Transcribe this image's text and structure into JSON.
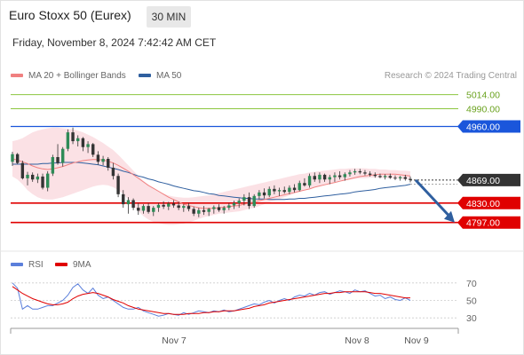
{
  "header": {
    "title": "Euro Stoxx 50 (Eurex)",
    "timeframe": "30 MIN",
    "datetime": "Friday, November 8, 2024 7:42:42 AM CET"
  },
  "legend": {
    "ma20_label": "MA 20 + Bollinger Bands",
    "ma20_color": "#f08080",
    "ma50_label": "MA 50",
    "ma50_color": "#2f5f9f",
    "copyright": "Research © 2024 Trading Central"
  },
  "rsi_legend": {
    "rsi_label": "RSI",
    "rsi_color": "#5b7fdb",
    "ma9_label": "9MA",
    "ma9_color": "#e00000"
  },
  "chart_data": [
    {
      "type": "candlestick",
      "ylim": [
        4780,
        5030
      ],
      "x_ticks": [
        "Nov 7",
        "Nov 8",
        "Nov 9"
      ],
      "levels": [
        {
          "label": "5014.00",
          "value": 5014,
          "color": "#8cc63f",
          "style": "thin"
        },
        {
          "label": "4990.00",
          "value": 4990,
          "color": "#8cc63f",
          "style": "thin"
        },
        {
          "label": "4960.00",
          "value": 4960,
          "color": "#1a56db",
          "style": "resistance"
        },
        {
          "label": "4869.00",
          "value": 4869,
          "color": "#333333",
          "style": "last"
        },
        {
          "label": "4830.00",
          "value": 4830,
          "color": "#e00000",
          "style": "support"
        },
        {
          "label": "4797.00",
          "value": 4797,
          "color": "#e00000",
          "style": "support"
        }
      ],
      "candles": [
        [
          4900,
          4917,
          4893,
          4913
        ],
        [
          4913,
          4915,
          4896,
          4898
        ],
        [
          4898,
          4902,
          4870,
          4872
        ],
        [
          4872,
          4883,
          4860,
          4878
        ],
        [
          4878,
          4882,
          4866,
          4870
        ],
        [
          4870,
          4880,
          4864,
          4875
        ],
        [
          4875,
          4880,
          4853,
          4856
        ],
        [
          4856,
          4884,
          4850,
          4880
        ],
        [
          4880,
          4912,
          4876,
          4908
        ],
        [
          4908,
          4930,
          4895,
          4898
        ],
        [
          4898,
          4925,
          4892,
          4922
        ],
        [
          4922,
          4955,
          4918,
          4950
        ],
        [
          4950,
          4958,
          4930,
          4935
        ],
        [
          4935,
          4945,
          4926,
          4940
        ],
        [
          4940,
          4942,
          4918,
          4925
        ],
        [
          4925,
          4935,
          4915,
          4930
        ],
        [
          4930,
          4932,
          4908,
          4912
        ],
        [
          4912,
          4918,
          4895,
          4900
        ],
        [
          4900,
          4910,
          4894,
          4905
        ],
        [
          4905,
          4908,
          4885,
          4890
        ],
        [
          4890,
          4898,
          4870,
          4876
        ],
        [
          4876,
          4880,
          4840,
          4845
        ],
        [
          4845,
          4852,
          4822,
          4828
        ],
        [
          4828,
          4840,
          4812,
          4835
        ],
        [
          4835,
          4838,
          4818,
          4822
        ],
        [
          4822,
          4830,
          4810,
          4817
        ],
        [
          4817,
          4828,
          4812,
          4825
        ],
        [
          4825,
          4830,
          4812,
          4815
        ],
        [
          4815,
          4825,
          4808,
          4822
        ],
        [
          4822,
          4830,
          4815,
          4827
        ],
        [
          4827,
          4833,
          4820,
          4824
        ],
        [
          4824,
          4832,
          4818,
          4829
        ],
        [
          4829,
          4835,
          4822,
          4826
        ],
        [
          4826,
          4832,
          4818,
          4822
        ],
        [
          4822,
          4828,
          4815,
          4825
        ],
        [
          4825,
          4830,
          4816,
          4820
        ],
        [
          4820,
          4824,
          4808,
          4812
        ],
        [
          4812,
          4822,
          4806,
          4818
        ],
        [
          4818,
          4825,
          4810,
          4815
        ],
        [
          4815,
          4822,
          4808,
          4820
        ],
        [
          4820,
          4826,
          4812,
          4823
        ],
        [
          4823,
          4828,
          4815,
          4818
        ],
        [
          4818,
          4825,
          4812,
          4822
        ],
        [
          4822,
          4830,
          4818,
          4826
        ],
        [
          4826,
          4834,
          4820,
          4830
        ],
        [
          4830,
          4838,
          4822,
          4834
        ],
        [
          4834,
          4845,
          4826,
          4840
        ],
        [
          4840,
          4848,
          4820,
          4825
        ],
        [
          4825,
          4845,
          4822,
          4842
        ],
        [
          4842,
          4852,
          4836,
          4848
        ],
        [
          4848,
          4855,
          4838,
          4843
        ],
        [
          4843,
          4858,
          4840,
          4854
        ],
        [
          4854,
          4860,
          4845,
          4850
        ],
        [
          4850,
          4856,
          4842,
          4852
        ],
        [
          4852,
          4858,
          4846,
          4849
        ],
        [
          4849,
          4860,
          4845,
          4856
        ],
        [
          4856,
          4862,
          4848,
          4852
        ],
        [
          4852,
          4868,
          4850,
          4864
        ],
        [
          4864,
          4872,
          4858,
          4860
        ],
        [
          4860,
          4880,
          4856,
          4876
        ],
        [
          4876,
          4882,
          4866,
          4870
        ],
        [
          4870,
          4882,
          4864,
          4878
        ],
        [
          4878,
          4880,
          4866,
          4870
        ],
        [
          4870,
          4878,
          4862,
          4874
        ],
        [
          4874,
          4882,
          4866,
          4877
        ],
        [
          4877,
          4884,
          4870,
          4874
        ],
        [
          4874,
          4882,
          4868,
          4879
        ],
        [
          4879,
          4886,
          4875,
          4882
        ],
        [
          4882,
          4888,
          4878,
          4884
        ],
        [
          4884,
          4888,
          4879,
          4882
        ],
        [
          4882,
          4886,
          4877,
          4880
        ],
        [
          4880,
          4884,
          4875,
          4878
        ],
        [
          4878,
          4882,
          4873,
          4876
        ],
        [
          4876,
          4880,
          4872,
          4874
        ],
        [
          4874,
          4879,
          4870,
          4876
        ],
        [
          4876,
          4880,
          4871,
          4873
        ],
        [
          4873,
          4877,
          4869,
          4872
        ],
        [
          4872,
          4876,
          4868,
          4874
        ],
        [
          4874,
          4878,
          4868,
          4871
        ],
        [
          4871,
          4875,
          4865,
          4869
        ]
      ],
      "ma20": [
        4905,
        4903,
        4900,
        4897,
        4893,
        4890,
        4888,
        4887,
        4888,
        4890,
        4892,
        4895,
        4898,
        4900,
        4902,
        4903,
        4904,
        4904,
        4903,
        4901,
        4898,
        4894,
        4889,
        4884,
        4878,
        4872,
        4866,
        4860,
        4855,
        4850,
        4845,
        4840,
        4836,
        4832,
        4828,
        4826,
        4824,
        4822,
        4821,
        4821,
        4821,
        4822,
        4823,
        4824,
        4825,
        4826,
        4828,
        4830,
        4832,
        4834,
        4836,
        4838,
        4840,
        4842,
        4844,
        4846,
        4848,
        4850,
        4852,
        4854,
        4857,
        4859,
        4861,
        4863,
        4865,
        4867,
        4869,
        4871,
        4873,
        4875,
        4876,
        4877,
        4878,
        4879,
        4879,
        4879,
        4879,
        4878,
        4877,
        4876
      ],
      "bb_upper": [
        4935,
        4937,
        4940,
        4945,
        4950,
        4953,
        4955,
        4957,
        4958,
        4958,
        4957,
        4956,
        4955,
        4953,
        4950,
        4946,
        4942,
        4937,
        4932,
        4926,
        4920,
        4912,
        4903,
        4894,
        4885,
        4876,
        4868,
        4861,
        4855,
        4850,
        4846,
        4843,
        4841,
        4840,
        4839,
        4839,
        4840,
        4841,
        4842,
        4843,
        4845,
        4847,
        4849,
        4851,
        4853,
        4855,
        4857,
        4859,
        4861,
        4863,
        4865,
        4867,
        4869,
        4871,
        4873,
        4875,
        4877,
        4879,
        4880,
        4882,
        4883,
        4884,
        4885,
        4886,
        4887,
        4888,
        4888,
        4889,
        4889,
        4889,
        4889,
        4888,
        4888,
        4887,
        4887,
        4886,
        4886,
        4885,
        4885,
        4884
      ],
      "bb_lower": [
        4875,
        4870,
        4862,
        4852,
        4845,
        4840,
        4837,
        4836,
        4836,
        4838,
        4840,
        4843,
        4846,
        4849,
        4852,
        4855,
        4858,
        4860,
        4861,
        4860,
        4857,
        4852,
        4845,
        4836,
        4826,
        4816,
        4808,
        4802,
        4798,
        4796,
        4794,
        4793,
        4793,
        4794,
        4795,
        4797,
        4800,
        4803,
        4806,
        4808,
        4810,
        4812,
        4813,
        4814,
        4815,
        4816,
        4818,
        4820,
        4822,
        4825,
        4828,
        4831,
        4834,
        4837,
        4840,
        4843,
        4846,
        4849,
        4852,
        4855,
        4858,
        4860,
        4862,
        4864,
        4866,
        4868,
        4869,
        4870,
        4871,
        4872,
        4872,
        4873,
        4873,
        4873,
        4872,
        4872,
        4872,
        4871,
        4870,
        4870
      ],
      "ma50": [
        4896,
        4896,
        4896,
        4896,
        4896,
        4896,
        4897,
        4897,
        4898,
        4898,
        4899,
        4899,
        4899,
        4899,
        4898,
        4897,
        4896,
        4895,
        4893,
        4891,
        4889,
        4887,
        4884,
        4882,
        4879,
        4876,
        4874,
        4871,
        4869,
        4866,
        4864,
        4862,
        4859,
        4857,
        4855,
        4853,
        4851,
        4850,
        4848,
        4846,
        4845,
        4843,
        4842,
        4841,
        4840,
        4839,
        4838,
        4838,
        4837,
        4837,
        4837,
        4836,
        4836,
        4836,
        4836,
        4837,
        4837,
        4838,
        4838,
        4839,
        4840,
        4841,
        4842,
        4843,
        4844,
        4845,
        4846,
        4847,
        4849,
        4850,
        4851,
        4852,
        4853,
        4855,
        4856,
        4857,
        4858,
        4859,
        4860,
        4862
      ],
      "forecast": {
        "from": 4869,
        "to": 4797
      }
    },
    {
      "type": "line",
      "ylim": [
        20,
        80
      ],
      "ticks": [
        70,
        50,
        30
      ],
      "series": [
        {
          "name": "RSI",
          "color": "#5b7fdb",
          "values": [
            70,
            64,
            40,
            44,
            40,
            40,
            42,
            44,
            44,
            47,
            50,
            56,
            65,
            69,
            62,
            58,
            64,
            56,
            52,
            54,
            50,
            46,
            42,
            40,
            40,
            42,
            38,
            36,
            34,
            32,
            33,
            35,
            34,
            33,
            36,
            34,
            36,
            38,
            37,
            36,
            38,
            37,
            39,
            37,
            38,
            40,
            42,
            44,
            46,
            45,
            48,
            50,
            47,
            50,
            52,
            50,
            54,
            56,
            55,
            58,
            56,
            59,
            60,
            57,
            59,
            61,
            60,
            58,
            62,
            60,
            61,
            58,
            55,
            56,
            52,
            54,
            51,
            50,
            53,
            50
          ]
        },
        {
          "name": "9MA",
          "color": "#e00000",
          "values": [
            66,
            62,
            58,
            55,
            52,
            50,
            48,
            46,
            45,
            45,
            46,
            48,
            52,
            55,
            57,
            58,
            59,
            58,
            56,
            54,
            51,
            49,
            47,
            44,
            42,
            40,
            39,
            38,
            37,
            36,
            35,
            35,
            34,
            34,
            34,
            35,
            35,
            35,
            36,
            36,
            37,
            37,
            38,
            38,
            38,
            39,
            40,
            41,
            43,
            44,
            45,
            47,
            48,
            49,
            50,
            51,
            52,
            53,
            54,
            55,
            56,
            57,
            58,
            58,
            59,
            59,
            60,
            60,
            60,
            60,
            60,
            59,
            58,
            58,
            57,
            56,
            55,
            54,
            53,
            53
          ]
        }
      ]
    }
  ]
}
